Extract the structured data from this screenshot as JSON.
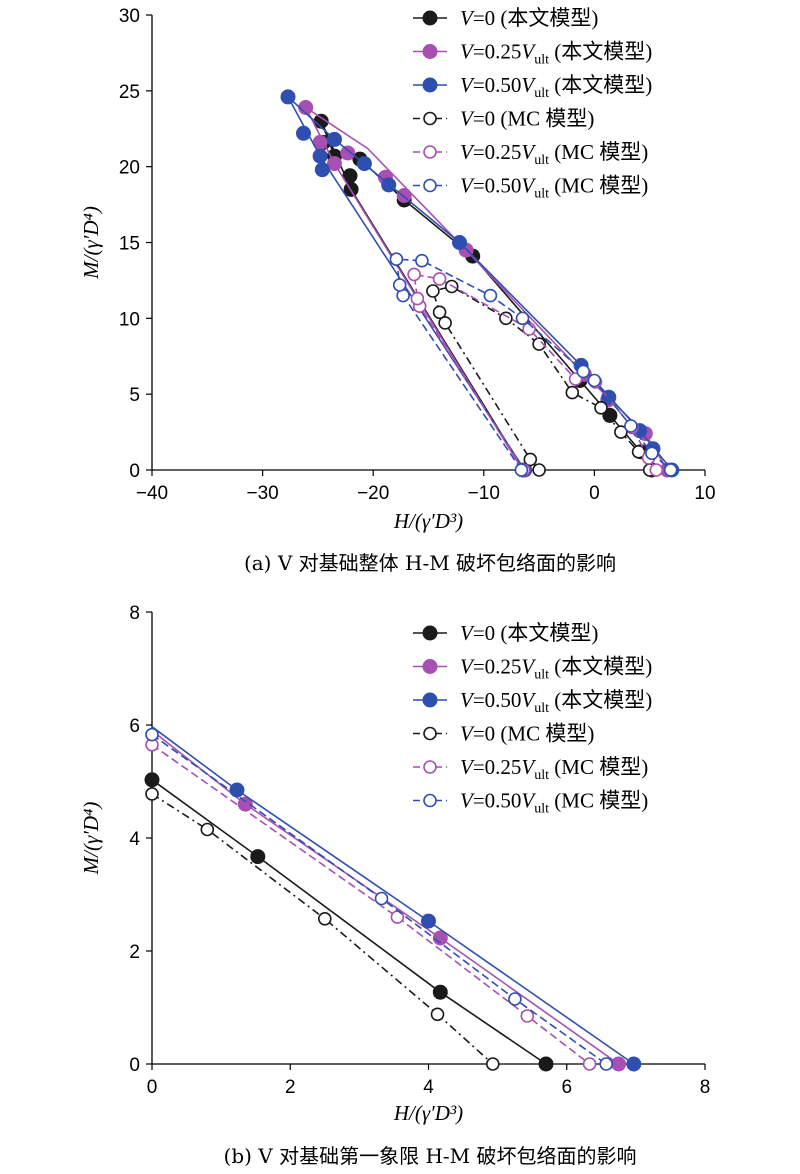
{
  "colors": {
    "black": "#1a1a1a",
    "purple": "#a84fb3",
    "blue": "#2f4fb0"
  },
  "chart_data": [
    {
      "type": "line",
      "caption": "(a) V 对基础整体 H-M 破坏包络面的影响",
      "xlabel": "H/(γ′D³)",
      "ylabel": "M/(γ′D⁴)",
      "xlim": [
        -40,
        10
      ],
      "ylim": [
        0,
        30
      ],
      "xticks": [
        -40,
        -30,
        -20,
        -10,
        0,
        10
      ],
      "yticks": [
        0,
        5,
        10,
        15,
        20,
        25,
        30
      ],
      "xtick_labels": [
        "−40",
        "−30",
        "−20",
        "−10",
        "0",
        "10"
      ],
      "ytick_labels": [
        "0",
        "5",
        "10",
        "15",
        "20",
        "25",
        "30"
      ],
      "legend_position": "top-right",
      "series": [
        {
          "name": "V=0 (本文模型)",
          "color": "black",
          "dash": "none",
          "filled": true,
          "line": [
            [
              -6.4,
              0
            ],
            [
              -22,
              18.5
            ],
            [
              -24.7,
              23
            ],
            [
              -23.5,
              20.7
            ],
            [
              -21.2,
              20.5
            ],
            [
              -17.2,
              17.8
            ],
            [
              -11,
              14.1
            ],
            [
              -1.3,
              5.9
            ],
            [
              1.4,
              3.6
            ],
            [
              4.2,
              1.2
            ],
            [
              5.2,
              0
            ]
          ],
          "markers": [
            [
              -6.4,
              0
            ],
            [
              -22,
              18.5
            ],
            [
              -22.1,
              19.4
            ],
            [
              -23.5,
              20.7
            ],
            [
              -24.5,
              21.6
            ],
            [
              -24.7,
              23
            ],
            [
              -21.2,
              20.5
            ],
            [
              -17.2,
              17.8
            ],
            [
              -11,
              14.1
            ],
            [
              -1.3,
              5.9
            ],
            [
              1.4,
              3.6
            ],
            [
              4.2,
              1.2
            ],
            [
              5.2,
              0
            ]
          ]
        },
        {
          "name": "V=0.25Vult (本文模型)",
          "color": "purple",
          "dash": "none",
          "filled": true,
          "line": [
            [
              -6.5,
              0
            ],
            [
              -23.5,
              20.2
            ],
            [
              -26.1,
              23.9
            ],
            [
              -20.5,
              21.2
            ],
            [
              -11.6,
              14.5
            ],
            [
              -0.9,
              6.3
            ],
            [
              4.6,
              2.4
            ],
            [
              6.6,
              0
            ]
          ],
          "markers": [
            [
              -6.5,
              0
            ],
            [
              -23.5,
              20.2
            ],
            [
              -24.8,
              21.6
            ],
            [
              -26.1,
              23.9
            ],
            [
              -22.3,
              20.9
            ],
            [
              -18.9,
              19.3
            ],
            [
              -17.2,
              18.1
            ],
            [
              -11.6,
              14.5
            ],
            [
              -0.9,
              6.3
            ],
            [
              1.2,
              4.6
            ],
            [
              4.6,
              2.4
            ],
            [
              6.6,
              0
            ]
          ]
        },
        {
          "name": "V=0.50Vult (本文模型)",
          "color": "blue",
          "dash": "none",
          "filled": true,
          "line": [
            [
              -6.3,
              0
            ],
            [
              -24.8,
              20.7
            ],
            [
              -27.7,
              24.6
            ],
            [
              -23.5,
              21.8
            ],
            [
              -12.2,
              15
            ],
            [
              -1.2,
              6.9
            ],
            [
              4.1,
              2.6
            ],
            [
              7,
              0
            ]
          ],
          "markers": [
            [
              -6.3,
              0
            ],
            [
              -24.6,
              19.8
            ],
            [
              -24.8,
              20.7
            ],
            [
              -26.3,
              22.2
            ],
            [
              -27.7,
              24.6
            ],
            [
              -23.5,
              21.8
            ],
            [
              -20.8,
              20.2
            ],
            [
              -18.6,
              18.8
            ],
            [
              -12.2,
              15
            ],
            [
              -1.2,
              6.9
            ],
            [
              1.3,
              4.8
            ],
            [
              4.1,
              2.6
            ],
            [
              5.3,
              1.4
            ],
            [
              7,
              0
            ]
          ]
        },
        {
          "name": "V=0 (MC 模型)",
          "color": "black",
          "dash": "8,4,2,4",
          "filled": false,
          "line": [
            [
              -5,
              0
            ],
            [
              -5.8,
              0.7
            ],
            [
              -13.5,
              9.7
            ],
            [
              -14,
              10.4
            ],
            [
              -14.6,
              11.8
            ],
            [
              -12.9,
              12.1
            ],
            [
              -8,
              10
            ],
            [
              -5,
              8.3
            ],
            [
              -2,
              5.1
            ],
            [
              0.6,
              4.1
            ],
            [
              2.4,
              2.5
            ],
            [
              4,
              1.2
            ],
            [
              5,
              0
            ]
          ],
          "markers": [
            [
              -5,
              0
            ],
            [
              -5.8,
              0.7
            ],
            [
              -13.5,
              9.7
            ],
            [
              -14,
              10.4
            ],
            [
              -14.6,
              11.8
            ],
            [
              -12.9,
              12.1
            ],
            [
              -8,
              10
            ],
            [
              -5,
              8.3
            ],
            [
              -2,
              5.1
            ],
            [
              0.6,
              4.1
            ],
            [
              2.4,
              2.5
            ],
            [
              4,
              1.2
            ],
            [
              5,
              0
            ]
          ]
        },
        {
          "name": "V=0.25Vult (MC 模型)",
          "color": "purple",
          "dash": "8,4",
          "filled": false,
          "line": [
            [
              -6.4,
              0
            ],
            [
              -15.8,
              10.8
            ],
            [
              -16,
              11.3
            ],
            [
              -16.3,
              12.9
            ],
            [
              -14,
              12.6
            ],
            [
              -5.9,
              9.3
            ],
            [
              -1.7,
              6
            ],
            [
              0.1,
              5.8
            ],
            [
              3.4,
              2.8
            ],
            [
              4.9,
              0.8
            ],
            [
              5.6,
              0
            ]
          ],
          "markers": [
            [
              -6.4,
              0
            ],
            [
              -15.8,
              10.8
            ],
            [
              -16,
              11.3
            ],
            [
              -16.3,
              12.9
            ],
            [
              -14,
              12.6
            ],
            [
              -5.9,
              9.3
            ],
            [
              -1.7,
              6
            ],
            [
              0.1,
              5.8
            ],
            [
              3.4,
              2.8
            ],
            [
              4.9,
              0.8
            ],
            [
              5.6,
              0
            ]
          ]
        },
        {
          "name": "V=0.50Vult (MC 模型)",
          "color": "blue",
          "dash": "8,4",
          "filled": false,
          "line": [
            [
              -6.6,
              0
            ],
            [
              -17.3,
              11.5
            ],
            [
              -17.6,
              12.2
            ],
            [
              -17.9,
              13.9
            ],
            [
              -15.6,
              13.8
            ],
            [
              -9.4,
              11.5
            ],
            [
              -6.5,
              10
            ],
            [
              -1,
              6.5
            ],
            [
              0,
              5.9
            ],
            [
              3.3,
              2.9
            ],
            [
              5.2,
              1.1
            ],
            [
              6.9,
              0
            ]
          ],
          "markers": [
            [
              -6.6,
              0
            ],
            [
              -17.3,
              11.5
            ],
            [
              -17.6,
              12.2
            ],
            [
              -17.9,
              13.9
            ],
            [
              -15.6,
              13.8
            ],
            [
              -9.4,
              11.5
            ],
            [
              -6.5,
              10
            ],
            [
              -1,
              6.5
            ],
            [
              0,
              5.9
            ],
            [
              3.3,
              2.9
            ],
            [
              5.2,
              1.1
            ],
            [
              6.9,
              0
            ]
          ]
        }
      ]
    },
    {
      "type": "line",
      "caption": "(b) V 对基础第一象限 H-M 破坏包络面的影响",
      "xlabel": "H/(γ′D³)",
      "ylabel": "M/(γ′D⁴)",
      "xlim": [
        0,
        8
      ],
      "ylim": [
        0,
        8
      ],
      "xticks": [
        0,
        2,
        4,
        6,
        8
      ],
      "yticks": [
        0,
        2,
        4,
        6,
        8
      ],
      "xtick_labels": [
        "0",
        "2",
        "4",
        "6",
        "8"
      ],
      "ytick_labels": [
        "0",
        "2",
        "4",
        "6",
        "8"
      ],
      "legend_position": "top-right",
      "series": [
        {
          "name": "V=0 (本文模型)",
          "color": "black",
          "dash": "none",
          "filled": true,
          "line": [
            [
              0,
              5.03
            ],
            [
              1.53,
              3.67
            ],
            [
              4.17,
              1.27
            ],
            [
              5.7,
              0
            ]
          ],
          "markers": [
            [
              0,
              5.03
            ],
            [
              1.53,
              3.67
            ],
            [
              4.17,
              1.27
            ],
            [
              5.7,
              0
            ]
          ]
        },
        {
          "name": "V=0.25Vult (本文模型)",
          "color": "purple",
          "dash": "none",
          "filled": true,
          "line": [
            [
              0,
              5.9
            ],
            [
              1.35,
              4.6
            ],
            [
              4.17,
              2.23
            ],
            [
              6.75,
              0
            ]
          ],
          "markers": [
            [
              1.35,
              4.6
            ],
            [
              4.17,
              2.23
            ],
            [
              6.75,
              0
            ]
          ]
        },
        {
          "name": "V=0.50Vult (本文模型)",
          "color": "blue",
          "dash": "none",
          "filled": true,
          "line": [
            [
              0,
              5.97
            ],
            [
              1.23,
              4.85
            ],
            [
              4,
              2.53
            ],
            [
              6.97,
              0
            ]
          ],
          "markers": [
            [
              1.23,
              4.85
            ],
            [
              4,
              2.53
            ],
            [
              6.97,
              0
            ]
          ]
        },
        {
          "name": "V=0 (MC 模型)",
          "color": "black",
          "dash": "8,4,2,4",
          "filled": false,
          "line": [
            [
              0,
              4.78
            ],
            [
              0.8,
              4.15
            ],
            [
              2.5,
              2.57
            ],
            [
              4.13,
              0.88
            ],
            [
              4.93,
              0
            ]
          ],
          "markers": [
            [
              0,
              4.78
            ],
            [
              0.8,
              4.15
            ],
            [
              2.5,
              2.57
            ],
            [
              4.13,
              0.88
            ],
            [
              4.93,
              0
            ]
          ]
        },
        {
          "name": "V=0.25Vult (MC 模型)",
          "color": "purple",
          "dash": "8,4",
          "filled": false,
          "line": [
            [
              0,
              5.65
            ],
            [
              3.55,
              2.6
            ],
            [
              5.43,
              0.85
            ],
            [
              6.33,
              0
            ]
          ],
          "markers": [
            [
              0,
              5.65
            ],
            [
              3.55,
              2.6
            ],
            [
              5.43,
              0.85
            ],
            [
              6.33,
              0
            ]
          ]
        },
        {
          "name": "V=0.50Vult (MC 模型)",
          "color": "blue",
          "dash": "8,4",
          "filled": false,
          "line": [
            [
              0,
              5.83
            ],
            [
              3.32,
              2.93
            ],
            [
              5.25,
              1.15
            ],
            [
              6.57,
              0
            ]
          ],
          "markers": [
            [
              0,
              5.83
            ],
            [
              3.32,
              2.93
            ],
            [
              5.25,
              1.15
            ],
            [
              6.57,
              0
            ]
          ]
        }
      ]
    }
  ]
}
